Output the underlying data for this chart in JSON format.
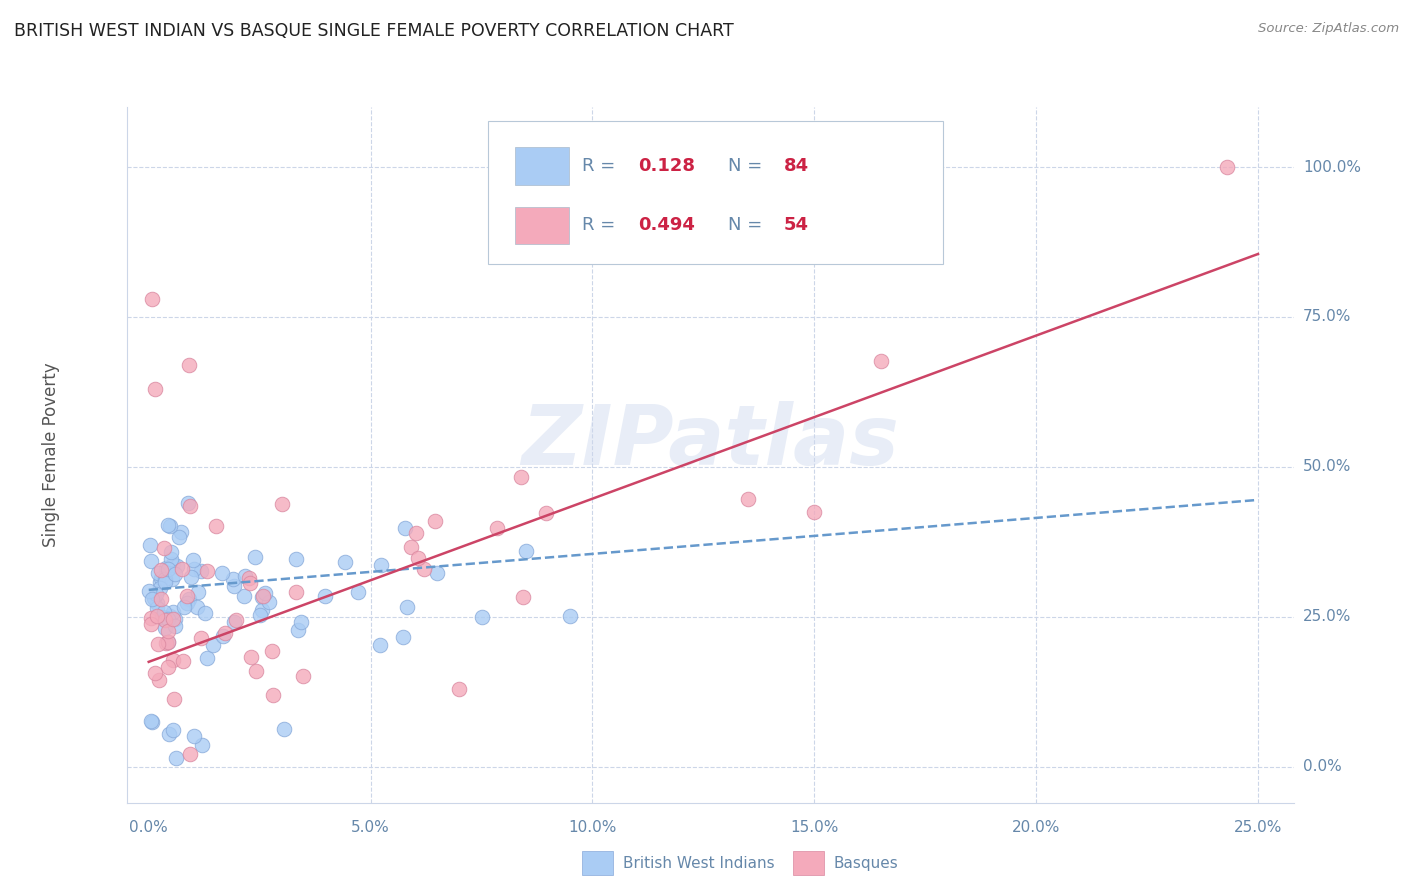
{
  "title": "BRITISH WEST INDIAN VS BASQUE SINGLE FEMALE POVERTY CORRELATION CHART",
  "source": "Source: ZipAtlas.com",
  "xlabel_ticks": [
    "0.0%",
    "5.0%",
    "10.0%",
    "15.0%",
    "20.0%",
    "25.0%"
  ],
  "xlabel_vals": [
    0.0,
    0.05,
    0.1,
    0.15,
    0.2,
    0.25
  ],
  "ylabel_ticks": [
    "0.0%",
    "25.0%",
    "50.0%",
    "75.0%",
    "100.0%"
  ],
  "ylabel_vals": [
    0.0,
    0.25,
    0.5,
    0.75,
    1.0
  ],
  "ylabel_label": "Single Female Poverty",
  "xlim": [
    -0.005,
    0.258
  ],
  "ylim": [
    -0.06,
    1.1
  ],
  "legend_entries": [
    {
      "label": "British West Indians",
      "R": 0.128,
      "N": 84,
      "color": "#aaccf4"
    },
    {
      "label": "Basques",
      "R": 0.494,
      "N": 54,
      "color": "#f4aabb"
    }
  ],
  "bwi_line_x": [
    0.0,
    0.25
  ],
  "bwi_line_y": [
    0.295,
    0.445
  ],
  "basque_line_x": [
    0.0,
    0.25
  ],
  "basque_line_y": [
    0.175,
    0.855
  ],
  "watermark": "ZIPatlas",
  "grid_color": "#ccd6e8",
  "bwi_dot_color": "#aaccf4",
  "basque_dot_color": "#f4aabb",
  "bwi_dot_edge": "#88aada",
  "basque_dot_edge": "#da88a0",
  "bwi_line_color": "#6699cc",
  "basque_line_color": "#cc4466",
  "title_color": "#222222",
  "ylabel_color": "#555555",
  "tick_color": "#6688aa",
  "legend_r_color": "#6688aa",
  "legend_n_color": "#cc2244",
  "legend_val_color": "#cc2244",
  "bg_color": "#ffffff",
  "bottom_legend_color": "#6688aa"
}
